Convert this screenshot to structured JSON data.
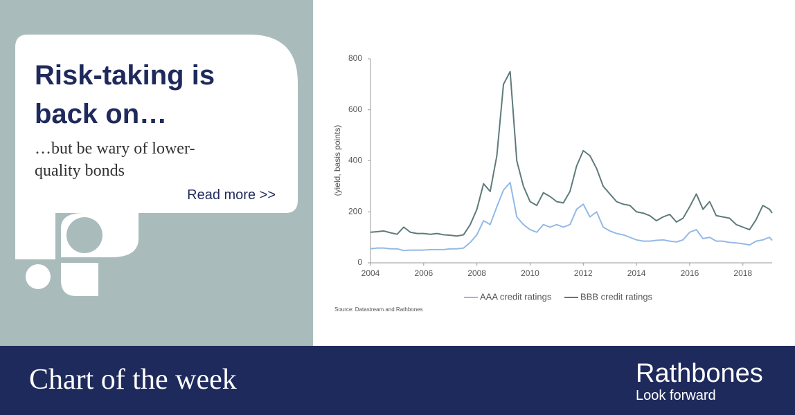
{
  "headline": [
    "Risk-taking is",
    "back on…"
  ],
  "subheadline": [
    "…but be wary of lower-",
    "quality bonds"
  ],
  "link": "Read more >>",
  "footer": {
    "title": "Chart of the week",
    "brand": "Rathbones",
    "tagline": "Look forward"
  },
  "chart_data": {
    "type": "line",
    "y_label": "(yield, basis points)",
    "source": "Source: Datastream and Rathbones",
    "x": [
      2004,
      2004.25,
      2004.5,
      2004.75,
      2005,
      2005.25,
      2005.5,
      2005.75,
      2006,
      2006.25,
      2006.5,
      2006.75,
      2007,
      2007.25,
      2007.5,
      2007.75,
      2008,
      2008.25,
      2008.5,
      2008.75,
      2009,
      2009.25,
      2009.5,
      2009.75,
      2010,
      2010.25,
      2010.5,
      2010.75,
      2011,
      2011.25,
      2011.5,
      2011.75,
      2012,
      2012.25,
      2012.5,
      2012.75,
      2013,
      2013.25,
      2013.5,
      2013.75,
      2014,
      2014.25,
      2014.5,
      2014.75,
      2015,
      2015.25,
      2015.5,
      2015.75,
      2016,
      2016.25,
      2016.5,
      2016.75,
      2017,
      2017.25,
      2017.5,
      2017.75,
      2018,
      2018.25,
      2018.5,
      2018.75,
      2019,
      2019.1
    ],
    "series": [
      {
        "name": "AAA credit ratings",
        "color": "#93b9e6",
        "values": [
          55,
          58,
          58,
          55,
          55,
          48,
          50,
          50,
          50,
          52,
          52,
          52,
          55,
          55,
          58,
          80,
          110,
          165,
          150,
          220,
          285,
          315,
          180,
          150,
          130,
          120,
          150,
          140,
          150,
          140,
          150,
          210,
          230,
          180,
          200,
          140,
          125,
          115,
          110,
          100,
          90,
          85,
          85,
          88,
          90,
          85,
          82,
          90,
          120,
          130,
          95,
          100,
          85,
          85,
          80,
          78,
          75,
          70,
          85,
          90,
          100,
          88
        ]
      },
      {
        "name": "BBB credit ratings",
        "color": "#5f7a7a",
        "values": [
          120,
          122,
          125,
          118,
          112,
          140,
          120,
          115,
          115,
          112,
          115,
          110,
          108,
          105,
          110,
          150,
          210,
          310,
          280,
          420,
          700,
          750,
          400,
          300,
          240,
          225,
          275,
          260,
          240,
          235,
          280,
          380,
          440,
          420,
          370,
          300,
          270,
          240,
          230,
          225,
          200,
          195,
          185,
          165,
          180,
          190,
          160,
          175,
          220,
          270,
          210,
          240,
          185,
          180,
          175,
          150,
          140,
          130,
          170,
          225,
          210,
          195
        ]
      }
    ],
    "xlim": [
      2004,
      2019.1
    ],
    "xticks": [
      2004,
      2006,
      2008,
      2010,
      2012,
      2014,
      2016,
      2018
    ],
    "ylim": [
      0,
      800
    ],
    "yticks": [
      0,
      200,
      400,
      600,
      800
    ],
    "grid": false,
    "legend": "bottom"
  }
}
